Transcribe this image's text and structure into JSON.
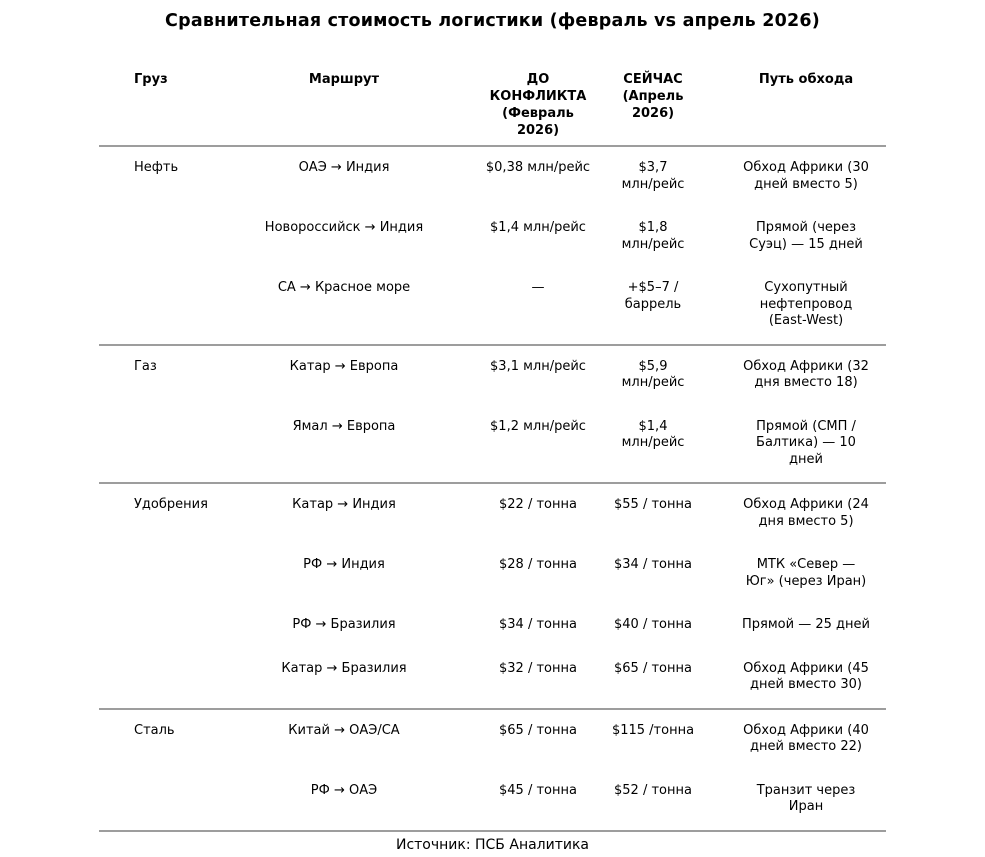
{
  "title": "Сравнительная стоимость логистики (февраль vs апрель 2026)",
  "source": "Источник: ПСБ Аналитика",
  "colors": {
    "text": "#000000",
    "line": "#9d9d9d",
    "background": "#ffffff"
  },
  "table": {
    "columns": {
      "cargo": "Груз",
      "route": "Маршрут",
      "before": "ДО\nКОНФЛИКТА\n(Февраль\n2026)",
      "now": "СЕЙЧАС\n(Апрель\n2026)",
      "detour": "Путь обхода"
    },
    "groups": [
      {
        "cargo": "Нефть",
        "rows": [
          {
            "route": "ОАЭ → Индия",
            "before": "$0,38 млн/рейс",
            "now": "$3,7\nмлн/рейс",
            "detour": "Обход Африки (30\nдней вместо 5)"
          },
          {
            "route": "Новороссийск → Индия",
            "before": "$1,4 млн/рейс",
            "now": "$1,8\nмлн/рейс",
            "detour": "Прямой (через\nСуэц) — 15 дней"
          },
          {
            "route": "СА → Красное море",
            "before": "—",
            "now": "+$5–7 /\nбаррель",
            "detour": "Сухопутный\nнефтепровод\n(East-West)"
          }
        ]
      },
      {
        "cargo": "Газ",
        "rows": [
          {
            "route": "Катар → Европа",
            "before": "$3,1 млн/рейс",
            "now": "$5,9\nмлн/рейс",
            "detour": "Обход Африки (32\nдня вместо 18)"
          },
          {
            "route": "Ямал → Европа",
            "before": "$1,2 млн/рейс",
            "now": "$1,4\nмлн/рейс",
            "detour": "Прямой (СМП /\nБалтика) — 10\nдней"
          }
        ]
      },
      {
        "cargo": "Удобрения",
        "rows": [
          {
            "route": "Катар → Индия",
            "before": "$22 / тонна",
            "now": "$55 / тонна",
            "detour": "Обход Африки (24\nдня вместо 5)"
          },
          {
            "route": "РФ → Индия",
            "before": "$28 / тонна",
            "now": "$34 / тонна",
            "detour": "МТК «Север —\nЮг» (через Иран)"
          },
          {
            "route": "РФ → Бразилия",
            "before": "$34 / тонна",
            "now": "$40 / тонна",
            "detour": "Прямой —  25 дней"
          },
          {
            "route": "Катар → Бразилия",
            "before": "$32 / тонна",
            "now": "$65 / тонна",
            "detour": "Обход Африки (45\nдней вместо 30)"
          }
        ]
      },
      {
        "cargo": "Сталь",
        "rows": [
          {
            "route": "Китай → ОАЭ/СА",
            "before": "$65 / тонна",
            "now": "$115 /тонна",
            "detour": "Обход Африки (40\nдней вместо 22)"
          },
          {
            "route": "РФ → ОАЭ",
            "before": "$45 / тонна",
            "now": "$52 / тонна",
            "detour": "Транзит через\nИран"
          }
        ]
      }
    ]
  }
}
